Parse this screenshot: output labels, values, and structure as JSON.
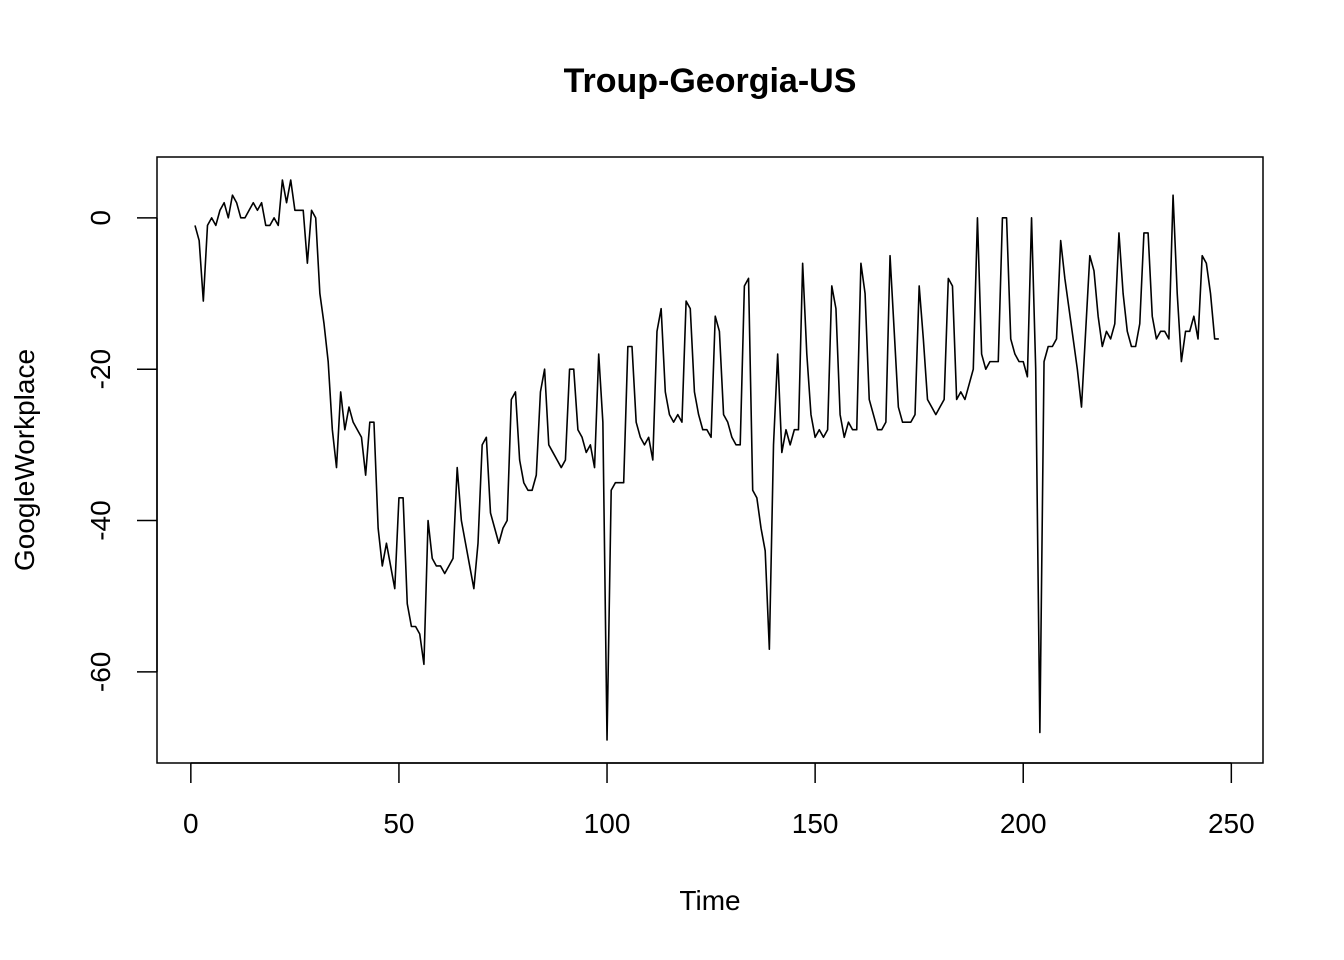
{
  "chart_data": {
    "type": "line",
    "title": "Troup-Georgia-US",
    "xlabel": "Time",
    "ylabel": "GoogleWorkplace",
    "xlim": [
      1,
      248
    ],
    "ylim": [
      -70,
      8
    ],
    "x_ticks": [
      0,
      50,
      100,
      150,
      200,
      250
    ],
    "x_tick_labels": [
      "0",
      "50",
      "100",
      "150",
      "200",
      "250"
    ],
    "y_ticks": [
      0,
      -20,
      -40,
      -60
    ],
    "y_tick_labels": [
      "0",
      "-20",
      "-40",
      "-60"
    ],
    "grid": false,
    "legend": "none",
    "series": [
      {
        "color": "#000000",
        "x_start": 1,
        "values": [
          -1,
          -3,
          -11,
          -1,
          0,
          -1,
          1,
          2,
          0,
          3,
          2,
          0,
          0,
          1,
          2,
          1,
          2,
          -1,
          -1,
          0,
          -1,
          5,
          2,
          5,
          1,
          1,
          1,
          -6,
          1,
          0,
          -10,
          -14,
          -19,
          -28,
          -33,
          -23,
          -28,
          -25,
          -27,
          -28,
          -29,
          -34,
          -27,
          -27,
          -41,
          -46,
          -43,
          -46,
          -49,
          -37,
          -37,
          -51,
          -54,
          -54,
          -55,
          -59,
          -40,
          -45,
          -46,
          -46,
          -47,
          -46,
          -45,
          -33,
          -40,
          -43,
          -46,
          -49,
          -43,
          -30,
          -29,
          -39,
          -41,
          -43,
          -41,
          -40,
          -24,
          -23,
          -32,
          -35,
          -36,
          -36,
          -34,
          -23,
          -20,
          -30,
          -31,
          -32,
          -33,
          -32,
          -20,
          -20,
          -28,
          -29,
          -31,
          -30,
          -33,
          -18,
          -27,
          -69,
          -36,
          -35,
          -35,
          -35,
          -17,
          -17,
          -27,
          -29,
          -30,
          -29,
          -32,
          -15,
          -12,
          -23,
          -26,
          -27,
          -26,
          -27,
          -11,
          -12,
          -23,
          -26,
          -28,
          -28,
          -29,
          -13,
          -15,
          -26,
          -27,
          -29,
          -30,
          -30,
          -9,
          -8,
          -36,
          -37,
          -41,
          -44,
          -57,
          -30,
          -18,
          -31,
          -28,
          -30,
          -28,
          -28,
          -6,
          -18,
          -26,
          -29,
          -28,
          -29,
          -28,
          -9,
          -12,
          -26,
          -29,
          -27,
          -28,
          -28,
          -6,
          -10,
          -24,
          -26,
          -28,
          -28,
          -27,
          -5,
          -15,
          -25,
          -27,
          -27,
          -27,
          -26,
          -9,
          -16,
          -24,
          -25,
          -26,
          -25,
          -24,
          -8,
          -9,
          -24,
          -23,
          -24,
          -22,
          -20,
          0,
          -18,
          -20,
          -19,
          -19,
          -19,
          0,
          0,
          -16,
          -18,
          -19,
          -19,
          -21,
          0,
          -20,
          -68,
          -19,
          -17,
          -17,
          -16,
          -3,
          -8,
          -12,
          -16,
          -20,
          -25,
          -15,
          -5,
          -7,
          -13,
          -17,
          -15,
          -16,
          -14,
          -2,
          -10,
          -15,
          -17,
          -17,
          -14,
          -2,
          -2,
          -13,
          -16,
          -15,
          -15,
          -16,
          3,
          -10,
          -19,
          -15,
          -15,
          -13,
          -16,
          -5,
          -6,
          -10,
          -16,
          -16
        ]
      }
    ]
  }
}
